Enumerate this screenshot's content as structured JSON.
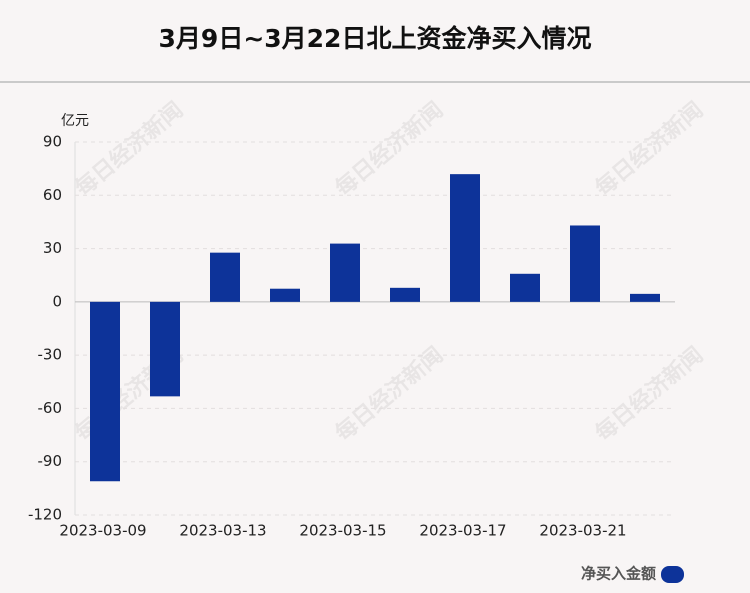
{
  "chart_data": {
    "type": "bar",
    "title": "3月9日~3月22日北上资金净买入情况",
    "y_label": "亿元",
    "watermark": "每日经济新闻",
    "categories": [
      "2023-03-09",
      null,
      "2023-03-13",
      null,
      "2023-03-15",
      null,
      "2023-03-17",
      null,
      "2023-03-21",
      null
    ],
    "series": [
      {
        "name": "净买入金额",
        "color": "#0d3399",
        "values": [
          -101,
          -53.2,
          27.7,
          7.4,
          32.8,
          7.9,
          71.9,
          15.8,
          43.0,
          4.5
        ]
      }
    ],
    "ylim": [
      -120,
      90
    ],
    "yticks": [
      -120,
      -90,
      -60,
      -30,
      0,
      30,
      60,
      90
    ],
    "grid": true
  }
}
